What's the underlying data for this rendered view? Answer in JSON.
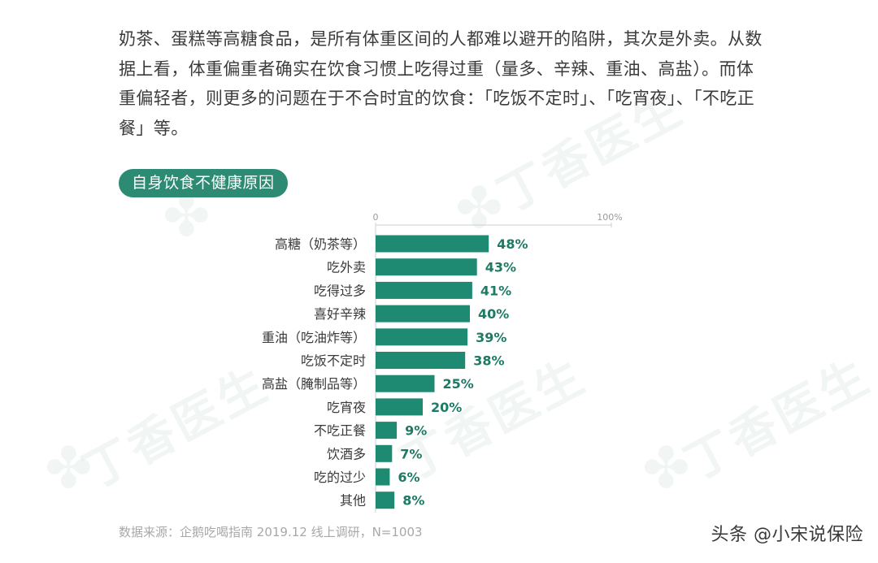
{
  "article": {
    "paragraph": "奶茶、蛋糕等高糖食品，是所有体重区间的人都难以避开的陷阱，其次是外卖。从数据上看，体重偏重者确实在饮食习惯上吃得过重（量多、辛辣、重油、高盐）。而体重偏轻者，则更多的问题在于不合时宜的饮食：「吃饭不定时」、「吃宵夜」、「不吃正餐」等。"
  },
  "section_tag": "自身饮食不健康原因",
  "watermark_text": "丁香医生",
  "source": "数据来源：企鹅吃喝指南 2019.12 线上调研，N=1003",
  "credit": "头条 @小宋说保险",
  "colors": {
    "bar": "#1e8a72",
    "value_label": "#1e7a64",
    "tag_bg": "#2e8b73"
  },
  "chart_data": {
    "type": "bar",
    "orientation": "horizontal",
    "title": "自身饮食不健康原因",
    "xlim": [
      0,
      100
    ],
    "axis_ticks": [
      "0",
      "100%"
    ],
    "grid": false,
    "categories": [
      "高糖（奶茶等）",
      "吃外卖",
      "吃得过多",
      "喜好辛辣",
      "重油（吃油炸等）",
      "吃饭不定时",
      "高盐（腌制品等）",
      "吃宵夜",
      "不吃正餐",
      "饮酒多",
      "吃的过少",
      "其他"
    ],
    "values": [
      48,
      43,
      41,
      40,
      39,
      38,
      25,
      20,
      9,
      7,
      6,
      8
    ],
    "value_labels": [
      "48%",
      "43%",
      "41%",
      "40%",
      "39%",
      "38%",
      "25%",
      "20%",
      "9%",
      "7%",
      "6%",
      "8%"
    ]
  }
}
